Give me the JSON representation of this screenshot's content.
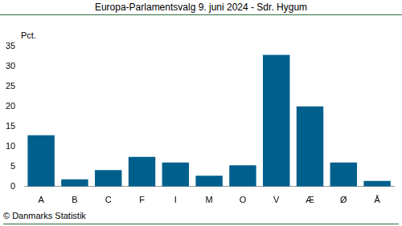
{
  "chart_data": {
    "type": "bar",
    "title": "Europa-Parlamentsvalg 9. juni 2024 - Sdr. Hygum",
    "y_label": "Pct.",
    "source": "© Danmarks Statistik",
    "categories": [
      "A",
      "B",
      "C",
      "F",
      "I",
      "M",
      "O",
      "V",
      "Æ",
      "Ø",
      "Å"
    ],
    "values": [
      12.8,
      1.8,
      4.1,
      7.4,
      6.0,
      2.7,
      5.3,
      32.8,
      20.0,
      6.0,
      1.4
    ],
    "color": "#005f8c",
    "ylim": [
      0,
      35
    ],
    "yticks": [
      0,
      5,
      10,
      15,
      20,
      25,
      30,
      35
    ],
    "grid": false
  }
}
